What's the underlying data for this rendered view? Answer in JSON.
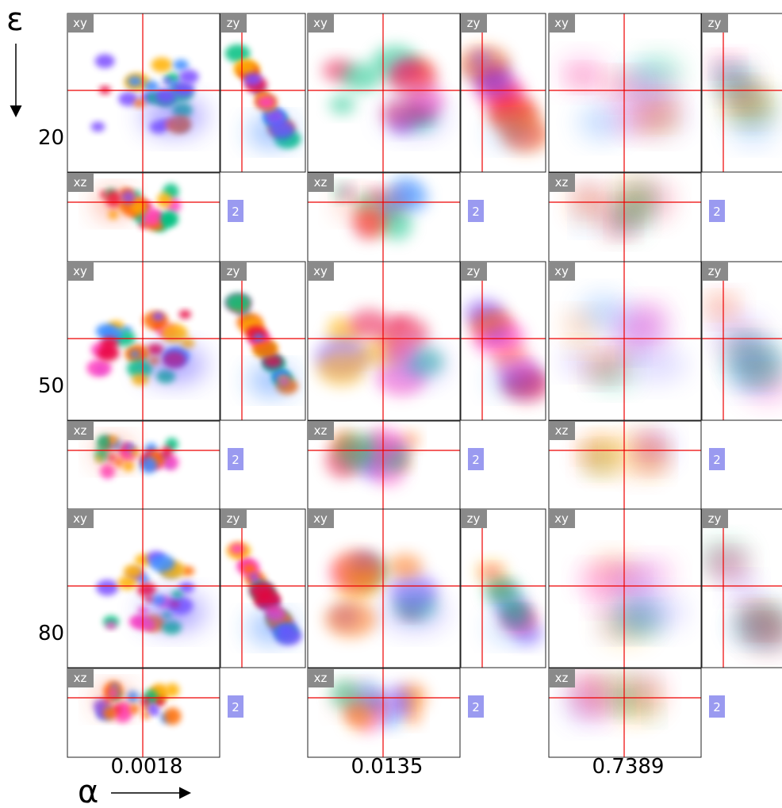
{
  "axis_labels": {
    "epsilon": "ε",
    "alpha": "α"
  },
  "rows": [
    "20",
    "50",
    "80"
  ],
  "columns": [
    "0.0018",
    "0.0135",
    "0.7389"
  ],
  "panel_labels": {
    "xy": "xy",
    "zy": "zy",
    "xz": "xz"
  },
  "badge": "2"
}
